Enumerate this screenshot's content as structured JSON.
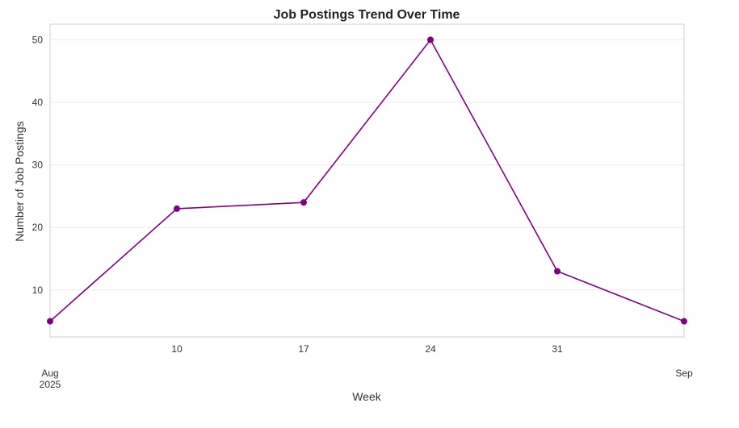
{
  "chart_data": {
    "type": "line",
    "title": "Job Postings Trend Over Time",
    "xlabel": "Week",
    "ylabel": "Number of Job Postings",
    "x": [
      "2025-08-03",
      "2025-08-10",
      "2025-08-17",
      "2025-08-24",
      "2025-08-31",
      "2025-09-07"
    ],
    "series": [
      {
        "values": [
          5,
          23,
          24,
          50,
          13,
          5
        ],
        "color": "#800080"
      }
    ],
    "xlim": [
      "2025-08-03",
      "2025-09-07"
    ],
    "ylim": [
      2.5,
      52.5
    ],
    "y_ticks": [
      10,
      20,
      30,
      40,
      50
    ],
    "x_ticks": [
      {
        "x": "2025-08-03",
        "label": "Aug",
        "sublabel": "2025"
      },
      {
        "x": "2025-08-10",
        "label": "10",
        "sublabel": ""
      },
      {
        "x": "2025-08-17",
        "label": "17",
        "sublabel": ""
      },
      {
        "x": "2025-08-24",
        "label": "24",
        "sublabel": ""
      },
      {
        "x": "2025-08-31",
        "label": "31",
        "sublabel": ""
      },
      {
        "x": "2025-09-07",
        "label": "Sep",
        "sublabel": ""
      }
    ],
    "grid": true,
    "marker": "circle"
  }
}
